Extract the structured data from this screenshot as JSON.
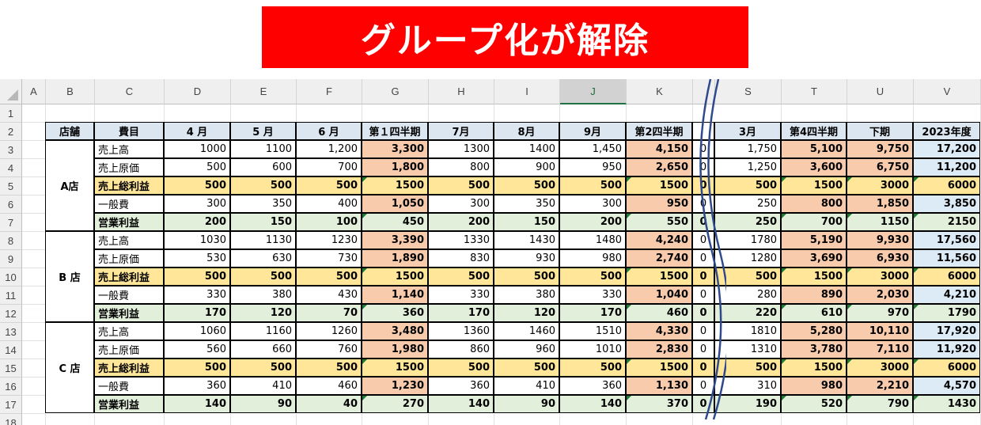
{
  "banner": {
    "title": "グループ化が解除"
  },
  "columns": [
    "A",
    "B",
    "C",
    "D",
    "E",
    "F",
    "G",
    "H",
    "I",
    "J",
    "K",
    "S",
    "T",
    "U",
    "V"
  ],
  "selected_column": "J",
  "header_row": {
    "store": "店舗",
    "item": "費目",
    "m4": "4 月",
    "m5": "5 月",
    "m6": "6 月",
    "q1": "第１四半期",
    "m7": "7月",
    "m8": "8月",
    "m9": "9月",
    "q2": "第2四半期",
    "m3": "3月",
    "q4": "第4四半期",
    "h2": "下期",
    "fy": "2023年度"
  },
  "row_numbers": [
    "1",
    "2",
    "3",
    "4",
    "5",
    "6",
    "7",
    "8",
    "9",
    "10",
    "11",
    "12",
    "13",
    "14",
    "15",
    "16",
    "17",
    "18"
  ],
  "stores": [
    "A店",
    "B 店",
    "C 店"
  ],
  "rows": [
    {
      "item": "売上高",
      "m4": "1000",
      "m5": "1100",
      "m6": "1,200",
      "q1": "3,300",
      "m7": "1300",
      "m8": "1400",
      "m9": "1,450",
      "q2": "4,150",
      "hid": "0",
      "m3": "1,750",
      "q4": "5,100",
      "h2": "9,750",
      "fy": "17,200"
    },
    {
      "item": "売上原価",
      "m4": "500",
      "m5": "600",
      "m6": "700",
      "q1": "1,800",
      "m7": "800",
      "m8": "900",
      "m9": "950",
      "q2": "2,650",
      "hid": "0",
      "m3": "1,250",
      "q4": "3,600",
      "h2": "6,750",
      "fy": "11,200"
    },
    {
      "item": "売上総利益",
      "m4": "500",
      "m5": "500",
      "m6": "500",
      "q1": "1500",
      "m7": "500",
      "m8": "500",
      "m9": "500",
      "q2": "1500",
      "hid": "0",
      "m3": "500",
      "q4": "1500",
      "h2": "3000",
      "fy": "6000"
    },
    {
      "item": "一般費",
      "m4": "300",
      "m5": "350",
      "m6": "400",
      "q1": "1,050",
      "m7": "300",
      "m8": "350",
      "m9": "300",
      "q2": "950",
      "hid": "0",
      "m3": "250",
      "q4": "800",
      "h2": "1,850",
      "fy": "3,850"
    },
    {
      "item": "営業利益",
      "m4": "200",
      "m5": "150",
      "m6": "100",
      "q1": "450",
      "m7": "200",
      "m8": "150",
      "m9": "200",
      "q2": "550",
      "hid": "0",
      "m3": "250",
      "q4": "700",
      "h2": "1150",
      "fy": "2150"
    },
    {
      "item": "売上高",
      "m4": "1030",
      "m5": "1130",
      "m6": "1230",
      "q1": "3,390",
      "m7": "1330",
      "m8": "1430",
      "m9": "1480",
      "q2": "4,240",
      "hid": "0",
      "m3": "1780",
      "q4": "5,190",
      "h2": "9,930",
      "fy": "17,560"
    },
    {
      "item": "売上原価",
      "m4": "530",
      "m5": "630",
      "m6": "730",
      "q1": "1,890",
      "m7": "830",
      "m8": "930",
      "m9": "980",
      "q2": "2,740",
      "hid": "0",
      "m3": "1280",
      "q4": "3,690",
      "h2": "6,930",
      "fy": "11,560"
    },
    {
      "item": "売上総利益",
      "m4": "500",
      "m5": "500",
      "m6": "500",
      "q1": "1500",
      "m7": "500",
      "m8": "500",
      "m9": "500",
      "q2": "1500",
      "hid": "0",
      "m3": "500",
      "q4": "1500",
      "h2": "3000",
      "fy": "6000"
    },
    {
      "item": "一般費",
      "m4": "330",
      "m5": "380",
      "m6": "430",
      "q1": "1,140",
      "m7": "330",
      "m8": "380",
      "m9": "330",
      "q2": "1,040",
      "hid": "0",
      "m3": "280",
      "q4": "890",
      "h2": "2,030",
      "fy": "4,210"
    },
    {
      "item": "営業利益",
      "m4": "170",
      "m5": "120",
      "m6": "70",
      "q1": "360",
      "m7": "170",
      "m8": "120",
      "m9": "170",
      "q2": "460",
      "hid": "0",
      "m3": "220",
      "q4": "610",
      "h2": "970",
      "fy": "1790"
    },
    {
      "item": "売上高",
      "m4": "1060",
      "m5": "1160",
      "m6": "1260",
      "q1": "3,480",
      "m7": "1360",
      "m8": "1460",
      "m9": "1510",
      "q2": "4,330",
      "hid": "0",
      "m3": "1810",
      "q4": "5,280",
      "h2": "10,110",
      "fy": "17,920"
    },
    {
      "item": "売上原価",
      "m4": "560",
      "m5": "660",
      "m6": "760",
      "q1": "1,980",
      "m7": "860",
      "m8": "960",
      "m9": "1010",
      "q2": "2,830",
      "hid": "0",
      "m3": "1310",
      "q4": "3,780",
      "h2": "7,110",
      "fy": "11,920"
    },
    {
      "item": "売上総利益",
      "m4": "500",
      "m5": "500",
      "m6": "500",
      "q1": "1500",
      "m7": "500",
      "m8": "500",
      "m9": "500",
      "q2": "1500",
      "hid": "0",
      "m3": "500",
      "q4": "1500",
      "h2": "3000",
      "fy": "6000"
    },
    {
      "item": "一般費",
      "m4": "360",
      "m5": "410",
      "m6": "460",
      "q1": "1,230",
      "m7": "360",
      "m8": "410",
      "m9": "360",
      "q2": "1,130",
      "hid": "0",
      "m3": "310",
      "q4": "980",
      "h2": "2,210",
      "fy": "4,570"
    },
    {
      "item": "営業利益",
      "m4": "140",
      "m5": "90",
      "m6": "40",
      "q1": "270",
      "m7": "140",
      "m8": "90",
      "m9": "140",
      "q2": "370",
      "hid": "0",
      "m3": "190",
      "q4": "520",
      "h2": "790",
      "fy": "1430"
    }
  ],
  "colors": {
    "banner": "#ff0000",
    "header_fill": "#dce6f1",
    "quarter_fill": "#f8cbad",
    "gross_fill": "#ffe699",
    "op_fill": "#e2efda",
    "year_fill": "#ddebf7",
    "wave": "#2f4a8c"
  }
}
